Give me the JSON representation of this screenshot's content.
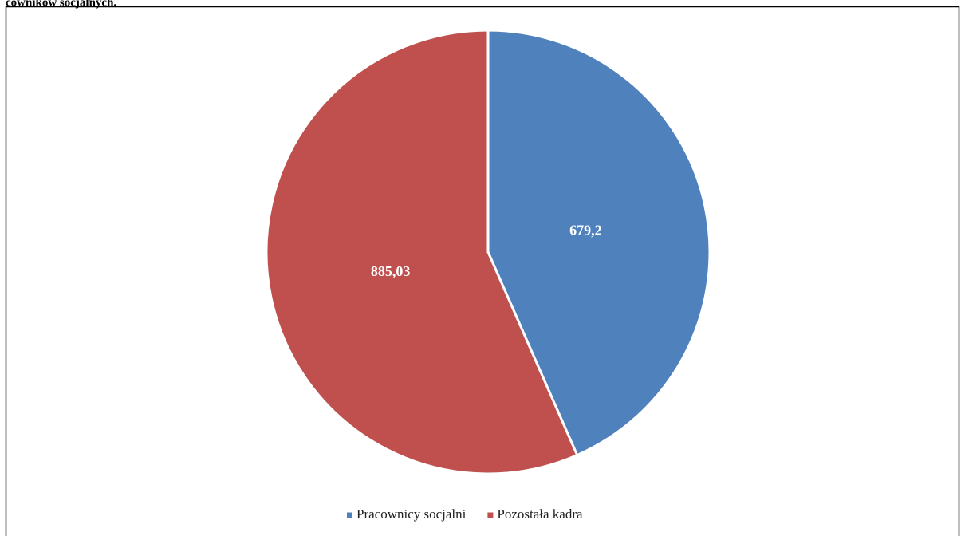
{
  "chart_data": {
    "type": "pie",
    "title": "cowników socjalnych.",
    "categories": [
      "Pracownicy socjalni",
      "Pozostała kadra"
    ],
    "values": [
      679.2,
      885.03
    ],
    "value_labels": [
      "679,2",
      "885,03"
    ],
    "colors": [
      "#4f81bd",
      "#c0504d"
    ],
    "legend": "bottom"
  }
}
